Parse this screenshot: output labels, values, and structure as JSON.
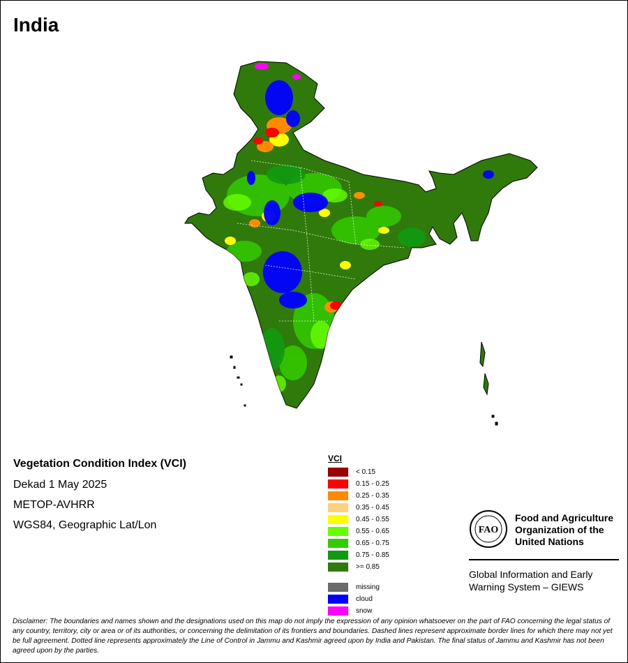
{
  "title": "India",
  "info": {
    "index_name": "Vegetation Condition Index (VCI)",
    "period": "Dekad 1 May 2025",
    "sensor": "METOP-AVHRR",
    "projection": "WGS84, Geographic Lat/Lon"
  },
  "legend": {
    "title": "VCI",
    "classes": [
      {
        "label": "< 0.15",
        "color": "#990000"
      },
      {
        "label": "0.15 - 0.25",
        "color": "#ff0000"
      },
      {
        "label": "0.25 - 0.35",
        "color": "#ff8c00"
      },
      {
        "label": "0.35 - 0.45",
        "color": "#ffd27a"
      },
      {
        "label": "0.45 - 0.55",
        "color": "#ffff00"
      },
      {
        "label": "0.55 - 0.65",
        "color": "#66ff00"
      },
      {
        "label": "0.65 - 0.75",
        "color": "#33cc00"
      },
      {
        "label": "0.75 - 0.85",
        "color": "#119911"
      },
      {
        "label": ">= 0.85",
        "color": "#2f7a0a"
      }
    ],
    "special": [
      {
        "label": "missing",
        "color": "#6b6b6b"
      },
      {
        "label": "cloud",
        "color": "#0000ff"
      },
      {
        "label": "snow",
        "color": "#ff00ff"
      }
    ]
  },
  "org": {
    "logo_text": "FAO",
    "name": "Food and Agriculture Organization of the United Nations",
    "system": "Global Information and Early Warning System – GIEWS"
  },
  "disclaimer": "Disclaimer: The boundaries and names shown and the designations used on this map do not imply the expression of any opinion whatsoever on the part of FAO concerning the legal status of any country, territory, city or area or of its authorities, or concerning the delimitation of its frontiers and boundaries. Dashed lines represent approximate border lines for which there may not yet be full agreement. Dotted line represents approximately the Line of Control in Jammu and Kashmir agreed upon by India and Pakistan. The final status of Jammu and Kashmir has not been agreed upon by the parties."
}
